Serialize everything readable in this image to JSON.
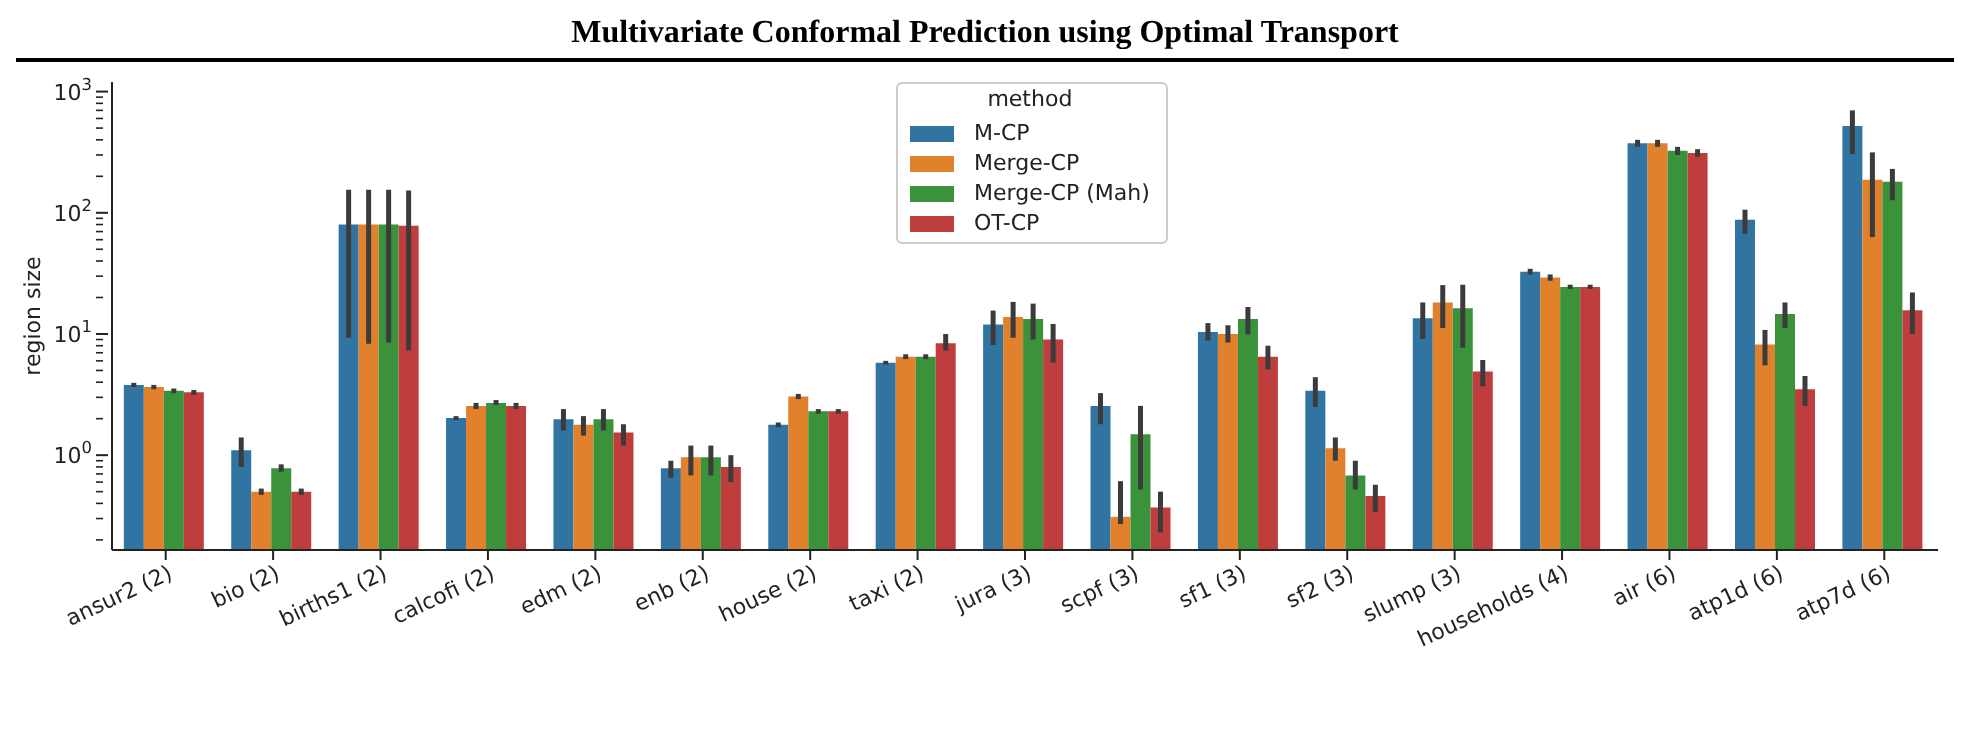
{
  "chart_data": {
    "type": "bar",
    "title": "Multivariate Conformal Prediction using Optimal Transport",
    "ylabel": "region size",
    "legend_title": "method",
    "legend": "top",
    "log": true,
    "grid": false,
    "categories": [
      "ansur2 (2)",
      "bio (2)",
      "births1 (2)",
      "calcofi (2)",
      "edm (2)",
      "enb (2)",
      "house (2)",
      "taxi (2)",
      "jura (3)",
      "scpf (3)",
      "sf1 (3)",
      "sf2 (3)",
      "slump (3)",
      "households (4)",
      "air (6)",
      "atp1d (6)",
      "atp7d (6)"
    ],
    "ylim": [
      0.165,
      1200
    ],
    "yticks": [
      {
        "value": 0.2,
        "label": null
      },
      {
        "value": 0.3,
        "label": null
      },
      {
        "value": 0.4,
        "label": null
      },
      {
        "value": 0.5,
        "label": null
      },
      {
        "value": 0.6,
        "label": null
      },
      {
        "value": 0.7,
        "label": null
      },
      {
        "value": 0.8,
        "label": null
      },
      {
        "value": 0.9,
        "label": null
      },
      {
        "value": 1,
        "label": "10$^{0}$"
      },
      {
        "value": 2,
        "label": null
      },
      {
        "value": 3,
        "label": null
      },
      {
        "value": 4,
        "label": null
      },
      {
        "value": 5,
        "label": null
      },
      {
        "value": 6,
        "label": null
      },
      {
        "value": 7,
        "label": null
      },
      {
        "value": 8,
        "label": null
      },
      {
        "value": 9,
        "label": null
      },
      {
        "value": 10,
        "label": "10$^{1}$"
      },
      {
        "value": 20,
        "label": null
      },
      {
        "value": 30,
        "label": null
      },
      {
        "value": 40,
        "label": null
      },
      {
        "value": 50,
        "label": null
      },
      {
        "value": 60,
        "label": null
      },
      {
        "value": 70,
        "label": null
      },
      {
        "value": 80,
        "label": null
      },
      {
        "value": 90,
        "label": null
      },
      {
        "value": 100,
        "label": "10$^{2}$"
      },
      {
        "value": 200,
        "label": null
      },
      {
        "value": 300,
        "label": null
      },
      {
        "value": 400,
        "label": null
      },
      {
        "value": 500,
        "label": null
      },
      {
        "value": 600,
        "label": null
      },
      {
        "value": 700,
        "label": null
      },
      {
        "value": 800,
        "label": null
      },
      {
        "value": 900,
        "label": null
      },
      {
        "value": 1000,
        "label": "10$^{3}$"
      }
    ],
    "series": [
      {
        "name": "M-CP",
        "color": "#3274a1",
        "values": [
          3.8,
          1.1,
          80,
          2.03,
          1.98,
          0.78,
          1.78,
          5.8,
          12,
          2.55,
          10.4,
          3.4,
          13.5,
          32.6,
          375,
          87.5,
          520
        ],
        "errors": [
          [
            3.65,
            3.95
          ],
          [
            0.8,
            1.4
          ],
          [
            9.3,
            155
          ],
          [
            1.95,
            2.1
          ],
          [
            1.6,
            2.4
          ],
          [
            0.65,
            0.9
          ],
          [
            1.7,
            1.86
          ],
          [
            5.6,
            6.0
          ],
          [
            8.1,
            15.6
          ],
          [
            1.8,
            3.25
          ],
          [
            8.8,
            12.3
          ],
          [
            2.5,
            4.4
          ],
          [
            9.1,
            18.2
          ],
          [
            31,
            34.5
          ],
          [
            350,
            400
          ],
          [
            67,
            106
          ],
          [
            305,
            700
          ]
        ]
      },
      {
        "name": "Merge-CP",
        "color": "#e1812c",
        "values": [
          3.65,
          0.5,
          80,
          2.55,
          1.78,
          0.96,
          3.05,
          6.5,
          13.8,
          0.31,
          10,
          1.14,
          18.2,
          29.2,
          375,
          8.2,
          187
        ],
        "errors": [
          [
            3.5,
            3.8
          ],
          [
            0.47,
            0.53
          ],
          [
            8.3,
            155
          ],
          [
            2.4,
            2.7
          ],
          [
            1.45,
            2.1
          ],
          [
            0.68,
            1.2
          ],
          [
            2.9,
            3.2
          ],
          [
            6.2,
            6.8
          ],
          [
            9.3,
            18.4
          ],
          [
            0.27,
            0.61
          ],
          [
            8.5,
            11.8
          ],
          [
            0.9,
            1.4
          ],
          [
            11.2,
            25.3
          ],
          [
            27.5,
            31
          ],
          [
            350,
            400
          ],
          [
            5.5,
            10.8
          ],
          [
            63,
            315
          ]
        ]
      },
      {
        "name": "Merge-CP (Mah)",
        "color": "#3a923a",
        "values": [
          3.4,
          0.78,
          80,
          2.7,
          1.98,
          0.96,
          2.3,
          6.5,
          13.3,
          1.49,
          13.3,
          0.68,
          16.3,
          24.4,
          325,
          14.6,
          180
        ],
        "errors": [
          [
            3.25,
            3.55
          ],
          [
            0.73,
            0.84
          ],
          [
            8.5,
            155
          ],
          [
            2.6,
            2.85
          ],
          [
            1.6,
            2.4
          ],
          [
            0.68,
            1.2
          ],
          [
            2.2,
            2.4
          ],
          [
            6.2,
            6.8
          ],
          [
            9,
            17.8
          ],
          [
            0.52,
            2.55
          ],
          [
            9.9,
            16.7
          ],
          [
            0.52,
            0.9
          ],
          [
            7.7,
            25.5
          ],
          [
            23.5,
            25.5
          ],
          [
            300,
            350
          ],
          [
            11.2,
            18.2
          ],
          [
            127,
            230
          ]
        ]
      },
      {
        "name": "OT-CP",
        "color": "#c03d3e",
        "values": [
          3.3,
          0.5,
          78,
          2.55,
          1.54,
          0.8,
          2.3,
          8.4,
          9,
          0.37,
          6.5,
          0.46,
          4.9,
          24.4,
          312,
          3.5,
          15.7
        ],
        "errors": [
          [
            3.15,
            3.45
          ],
          [
            0.47,
            0.53
          ],
          [
            7.3,
            153
          ],
          [
            2.4,
            2.7
          ],
          [
            1.2,
            1.8
          ],
          [
            0.6,
            1.0
          ],
          [
            2.2,
            2.4
          ],
          [
            7.3,
            10
          ],
          [
            5.8,
            12.1
          ],
          [
            0.23,
            0.5
          ],
          [
            5.1,
            8
          ],
          [
            0.34,
            0.57
          ],
          [
            3.7,
            6.1
          ],
          [
            23.5,
            25.5
          ],
          [
            290,
            335
          ],
          [
            2.55,
            4.5
          ],
          [
            10,
            22
          ]
        ]
      }
    ]
  }
}
